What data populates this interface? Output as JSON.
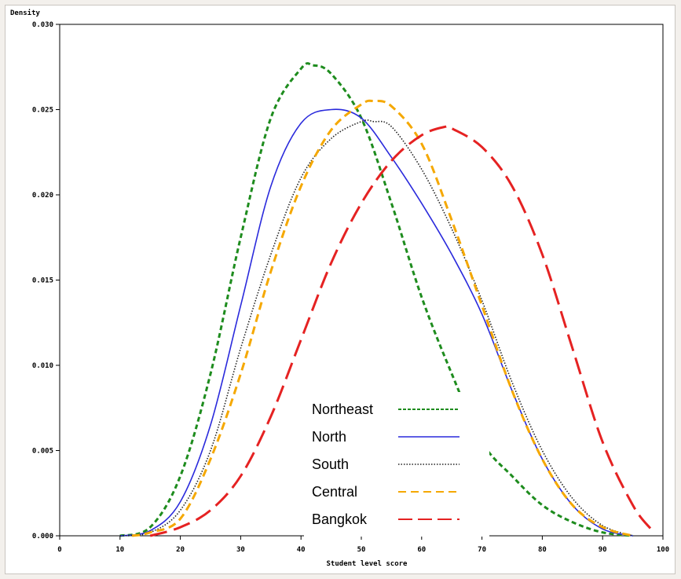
{
  "chart_data": {
    "type": "line",
    "title": "",
    "ylabel": "Density",
    "xlabel": "Student level score",
    "xlim": [
      0,
      100
    ],
    "ylim": [
      0,
      0.03
    ],
    "xticks": [
      "0",
      "10",
      "20",
      "30",
      "40",
      "50",
      "60",
      "70",
      "80",
      "90",
      "100"
    ],
    "yticks": [
      "0.000",
      "0.005",
      "0.010",
      "0.015",
      "0.020",
      "0.025",
      "0.030"
    ],
    "grid": false,
    "legend_position": "bottom-center",
    "series": [
      {
        "name": "Northeast",
        "color": "#1e8c1e",
        "dash": "short-dash",
        "x": [
          10,
          15,
          20,
          25,
          30,
          35,
          40,
          42,
          45,
          50,
          55,
          60,
          65,
          70,
          75,
          80,
          85,
          90,
          95
        ],
        "y": [
          0.0,
          0.0005,
          0.0035,
          0.0095,
          0.0175,
          0.0245,
          0.0274,
          0.0276,
          0.0271,
          0.0245,
          0.0195,
          0.014,
          0.0095,
          0.0055,
          0.0035,
          0.0018,
          0.0008,
          0.0002,
          0.0
        ]
      },
      {
        "name": "North",
        "color": "#2a2adc",
        "dash": "solid",
        "x": [
          10,
          15,
          20,
          25,
          30,
          35,
          40,
          45,
          50,
          55,
          60,
          65,
          70,
          75,
          80,
          85,
          90,
          95
        ],
        "y": [
          0.0,
          0.0003,
          0.002,
          0.0065,
          0.0135,
          0.0205,
          0.0242,
          0.025,
          0.0245,
          0.0222,
          0.0195,
          0.0165,
          0.013,
          0.0085,
          0.0045,
          0.0018,
          0.0004,
          0.0
        ]
      },
      {
        "name": "South",
        "color": "#222222",
        "dash": "dotted",
        "x": [
          10,
          15,
          20,
          25,
          30,
          35,
          40,
          45,
          50,
          52,
          55,
          60,
          65,
          70,
          75,
          80,
          85,
          90,
          95
        ],
        "y": [
          0.0,
          0.0002,
          0.0015,
          0.005,
          0.011,
          0.0165,
          0.021,
          0.0233,
          0.0243,
          0.0243,
          0.024,
          0.0215,
          0.018,
          0.0138,
          0.009,
          0.005,
          0.0022,
          0.0006,
          0.0
        ]
      },
      {
        "name": "Central",
        "color": "#f5a800",
        "dash": "dashed",
        "x": [
          12,
          15,
          20,
          25,
          30,
          35,
          40,
          45,
          50,
          52,
          55,
          60,
          65,
          70,
          75,
          80,
          85,
          90,
          95
        ],
        "y": [
          0.0,
          0.0002,
          0.001,
          0.0045,
          0.0095,
          0.0155,
          0.0205,
          0.0238,
          0.0253,
          0.0255,
          0.0252,
          0.023,
          0.0185,
          0.0135,
          0.0085,
          0.0045,
          0.0018,
          0.0005,
          0.0
        ]
      },
      {
        "name": "Bangkok",
        "color": "#e52222",
        "dash": "long-dash",
        "x": [
          15,
          20,
          25,
          30,
          35,
          40,
          45,
          50,
          55,
          60,
          64,
          65,
          70,
          75,
          80,
          85,
          90,
          95,
          98
        ],
        "y": [
          0.0,
          0.0005,
          0.0015,
          0.0035,
          0.007,
          0.0115,
          0.016,
          0.0195,
          0.022,
          0.0235,
          0.024,
          0.0239,
          0.0228,
          0.0205,
          0.0165,
          0.011,
          0.0055,
          0.0018,
          0.0004
        ]
      }
    ]
  }
}
